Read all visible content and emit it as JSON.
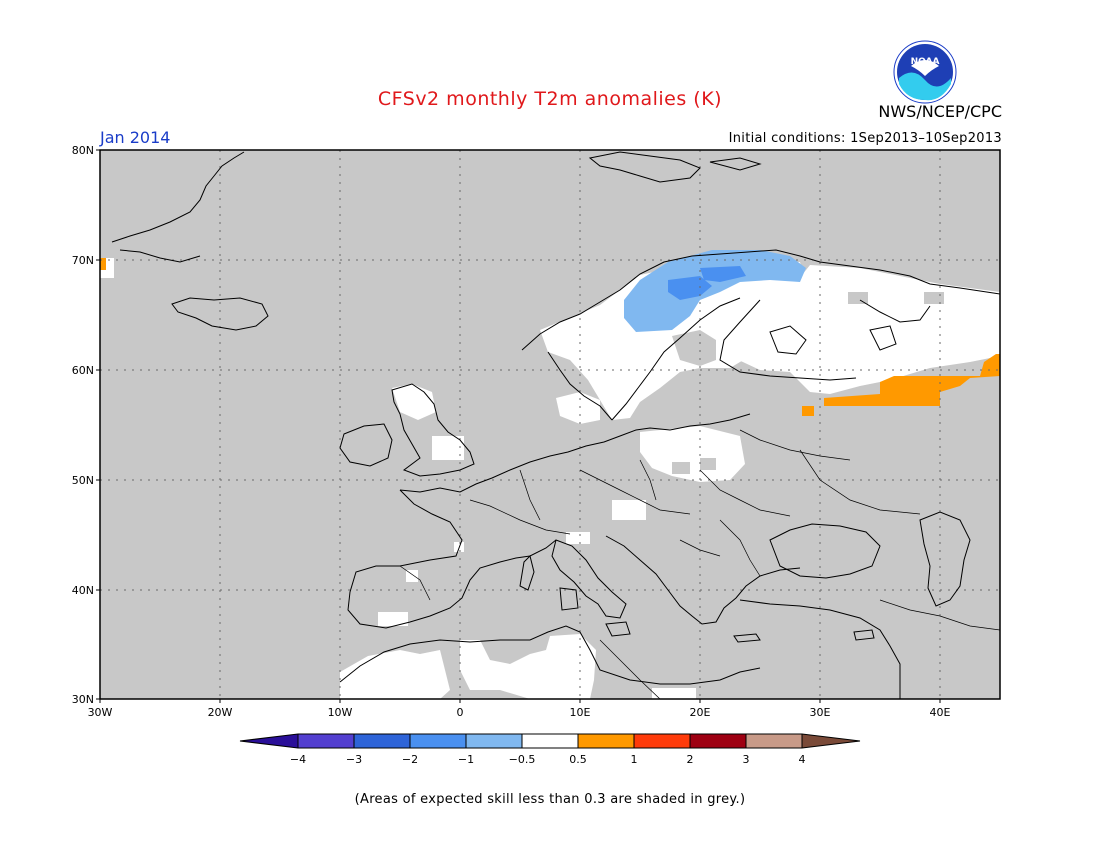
{
  "header": {
    "title": "CFSv2 monthly T2m anomalies (K)",
    "org": "NWS/NCEP/CPC",
    "month": "Jan 2014",
    "initial_conditions": "Initial conditions: 1Sep2013–10Sep2013",
    "logo_text": "NOAA"
  },
  "map": {
    "lat_labels": [
      "80N",
      "70N",
      "60N",
      "50N",
      "40N",
      "30N"
    ],
    "lon_labels": [
      "30W",
      "20W",
      "10W",
      "0",
      "10E",
      "20E",
      "30E",
      "40E"
    ],
    "grid": true,
    "background_color": "#c8c8c8"
  },
  "colorbar": {
    "labels": [
      "−4",
      "−3",
      "−2",
      "−1",
      "−0.5",
      "0.5",
      "1",
      "2",
      "3",
      "4"
    ],
    "colors": [
      "#2a0f99",
      "#533fd0",
      "#2e64d8",
      "#4a90f0",
      "#80b8f0",
      "#ffffff",
      "#ff9900",
      "#ff3b0a",
      "#9e0012",
      "#c89a88",
      "#7a4a38"
    ]
  },
  "footnote": "(Areas of expected skill less than 0.3 are shaded in grey.)"
}
